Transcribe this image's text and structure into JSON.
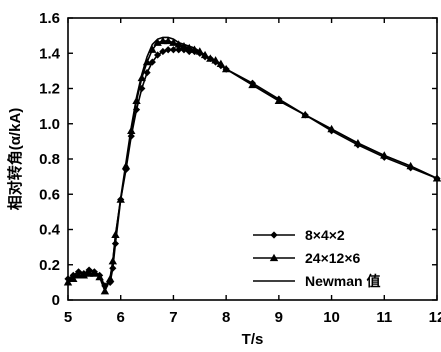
{
  "chart_data": {
    "type": "line",
    "xlabel": "T/s",
    "ylabel": "相对转角(α/kA)",
    "xlim": [
      5,
      12
    ],
    "ylim": [
      0,
      1.6
    ],
    "xticks": [
      5,
      6,
      7,
      8,
      9,
      10,
      11,
      12
    ],
    "yticks": [
      0,
      0.2,
      0.4,
      0.6,
      0.8,
      1.0,
      1.2,
      1.4,
      1.6
    ],
    "ytick_labels": [
      "0",
      "0.2",
      "0.4",
      "0.6",
      "0.8",
      "1.0",
      "1.2",
      "1.4",
      "1.6"
    ],
    "grid": false,
    "legend_position": "lower-right",
    "series": [
      {
        "name": "8×4×2",
        "marker": "diamond",
        "color": "#000000",
        "x": [
          5.0,
          5.1,
          5.2,
          5.3,
          5.4,
          5.5,
          5.6,
          5.7,
          5.8,
          5.85,
          5.9,
          6.0,
          6.1,
          6.2,
          6.3,
          6.4,
          6.5,
          6.6,
          6.7,
          6.8,
          6.9,
          7.0,
          7.1,
          7.2,
          7.3,
          7.4,
          7.5,
          7.6,
          7.7,
          7.8,
          7.9,
          8.0,
          8.5,
          9.0,
          9.5,
          10.0,
          10.5,
          11.0,
          11.5,
          12.0
        ],
        "y": [
          0.12,
          0.14,
          0.16,
          0.15,
          0.17,
          0.16,
          0.14,
          0.08,
          0.1,
          0.18,
          0.32,
          0.57,
          0.74,
          0.93,
          1.08,
          1.2,
          1.29,
          1.35,
          1.39,
          1.41,
          1.42,
          1.42,
          1.42,
          1.42,
          1.41,
          1.41,
          1.4,
          1.38,
          1.37,
          1.35,
          1.33,
          1.31,
          1.23,
          1.14,
          1.05,
          0.96,
          0.88,
          0.81,
          0.75,
          0.69
        ]
      },
      {
        "name": "24×12×6",
        "marker": "triangle",
        "color": "#000000",
        "x": [
          5.0,
          5.1,
          5.2,
          5.3,
          5.4,
          5.5,
          5.6,
          5.7,
          5.8,
          5.85,
          5.9,
          6.0,
          6.1,
          6.2,
          6.3,
          6.4,
          6.5,
          6.6,
          6.7,
          6.8,
          6.9,
          7.0,
          7.1,
          7.2,
          7.3,
          7.4,
          7.5,
          7.6,
          7.7,
          7.8,
          7.9,
          8.0,
          8.5,
          9.0,
          9.5,
          10.0,
          10.5,
          11.0,
          11.5,
          12.0
        ],
        "y": [
          0.1,
          0.12,
          0.14,
          0.14,
          0.15,
          0.15,
          0.13,
          0.05,
          0.12,
          0.22,
          0.37,
          0.57,
          0.76,
          0.96,
          1.13,
          1.26,
          1.35,
          1.42,
          1.46,
          1.47,
          1.47,
          1.46,
          1.45,
          1.44,
          1.43,
          1.42,
          1.41,
          1.39,
          1.37,
          1.36,
          1.34,
          1.31,
          1.22,
          1.13,
          1.05,
          0.97,
          0.89,
          0.82,
          0.76,
          0.69
        ]
      },
      {
        "name": "Newman 值",
        "marker": "none",
        "color": "#000000",
        "x": [
          5.0,
          5.1,
          5.2,
          5.3,
          5.4,
          5.5,
          5.6,
          5.7,
          5.8,
          5.85,
          5.9,
          6.0,
          6.1,
          6.2,
          6.3,
          6.4,
          6.5,
          6.6,
          6.7,
          6.8,
          6.9,
          7.0,
          7.1,
          7.2,
          7.3,
          7.4,
          7.5,
          7.6,
          7.7,
          7.8,
          7.9,
          8.0,
          8.5,
          9.0,
          9.5,
          10.0,
          10.5,
          11.0,
          11.5,
          12.0
        ],
        "y": [
          0.11,
          0.13,
          0.15,
          0.15,
          0.16,
          0.16,
          0.14,
          0.07,
          0.13,
          0.22,
          0.36,
          0.58,
          0.78,
          0.98,
          1.15,
          1.28,
          1.38,
          1.45,
          1.48,
          1.49,
          1.49,
          1.48,
          1.46,
          1.45,
          1.44,
          1.43,
          1.41,
          1.39,
          1.37,
          1.35,
          1.33,
          1.31,
          1.22,
          1.13,
          1.05,
          0.97,
          0.89,
          0.82,
          0.76,
          0.69
        ]
      }
    ]
  }
}
